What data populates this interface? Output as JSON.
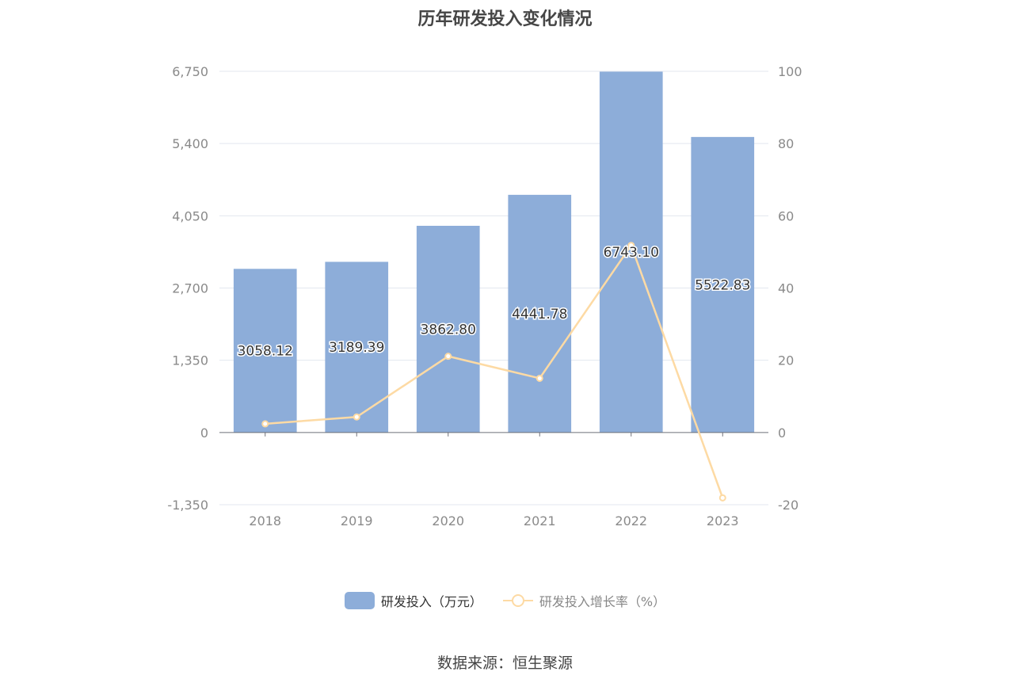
{
  "chart_data": {
    "type": "bar",
    "title": "历年研发投入变化情况",
    "categories": [
      "2018",
      "2019",
      "2020",
      "2021",
      "2022",
      "2023"
    ],
    "series": [
      {
        "name": "研发投入（万元）",
        "type": "bar",
        "axis": "left",
        "values": [
          3058.12,
          3189.39,
          3862.8,
          4441.78,
          6743.1,
          5522.83
        ],
        "labels": [
          "3058.12",
          "3189.39",
          "3862.80",
          "4441.78",
          "6743.10",
          "5522.83"
        ]
      },
      {
        "name": "研发投入增长率（%）",
        "type": "line",
        "axis": "right",
        "values": [
          2.4,
          4.3,
          21.1,
          15.0,
          51.8,
          -18.1
        ]
      }
    ],
    "y_left": {
      "ylim": [
        -1350,
        6750
      ],
      "ticks": [
        "-1,350",
        "0",
        "1,350",
        "2,700",
        "4,050",
        "5,400",
        "6,750"
      ]
    },
    "y_right": {
      "ylim": [
        -20,
        100
      ],
      "ticks": [
        "-20",
        "0",
        "20",
        "40",
        "60",
        "80",
        "100"
      ]
    },
    "grid": true,
    "legend_position": "bottom",
    "colors": {
      "bar": "#8dadd9",
      "line": "#fddaa4",
      "grid": "#e3e7ef",
      "axis": "#6e7079",
      "tick_text": "#8a8a8a"
    }
  },
  "source_text": "数据来源：恒生聚源"
}
